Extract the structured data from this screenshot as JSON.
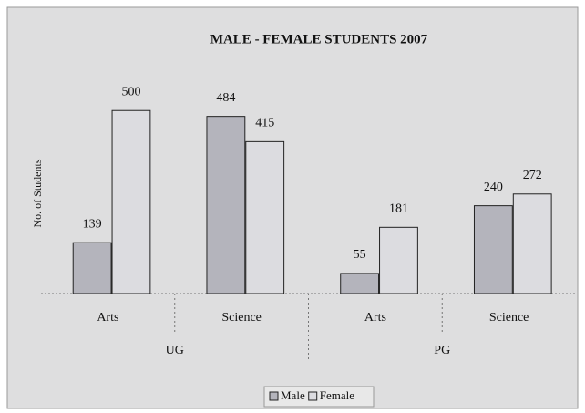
{
  "chart_data": {
    "type": "bar",
    "title": "MALE - FEMALE STUDENTS 2007",
    "y_label": "No. of Students",
    "groups": [
      {
        "name": "UG",
        "categories": [
          "Arts",
          "Science"
        ]
      },
      {
        "name": "PG",
        "categories": [
          "Arts",
          "Science"
        ]
      }
    ],
    "series": [
      {
        "name": "Male",
        "color": "#b4b4bc",
        "values": [
          139,
          484,
          55,
          240
        ]
      },
      {
        "name": "Female",
        "color": "#dcdce0",
        "values": [
          500,
          415,
          181,
          272
        ]
      }
    ],
    "ylim": [
      0,
      650
    ],
    "legend": "bottom"
  }
}
